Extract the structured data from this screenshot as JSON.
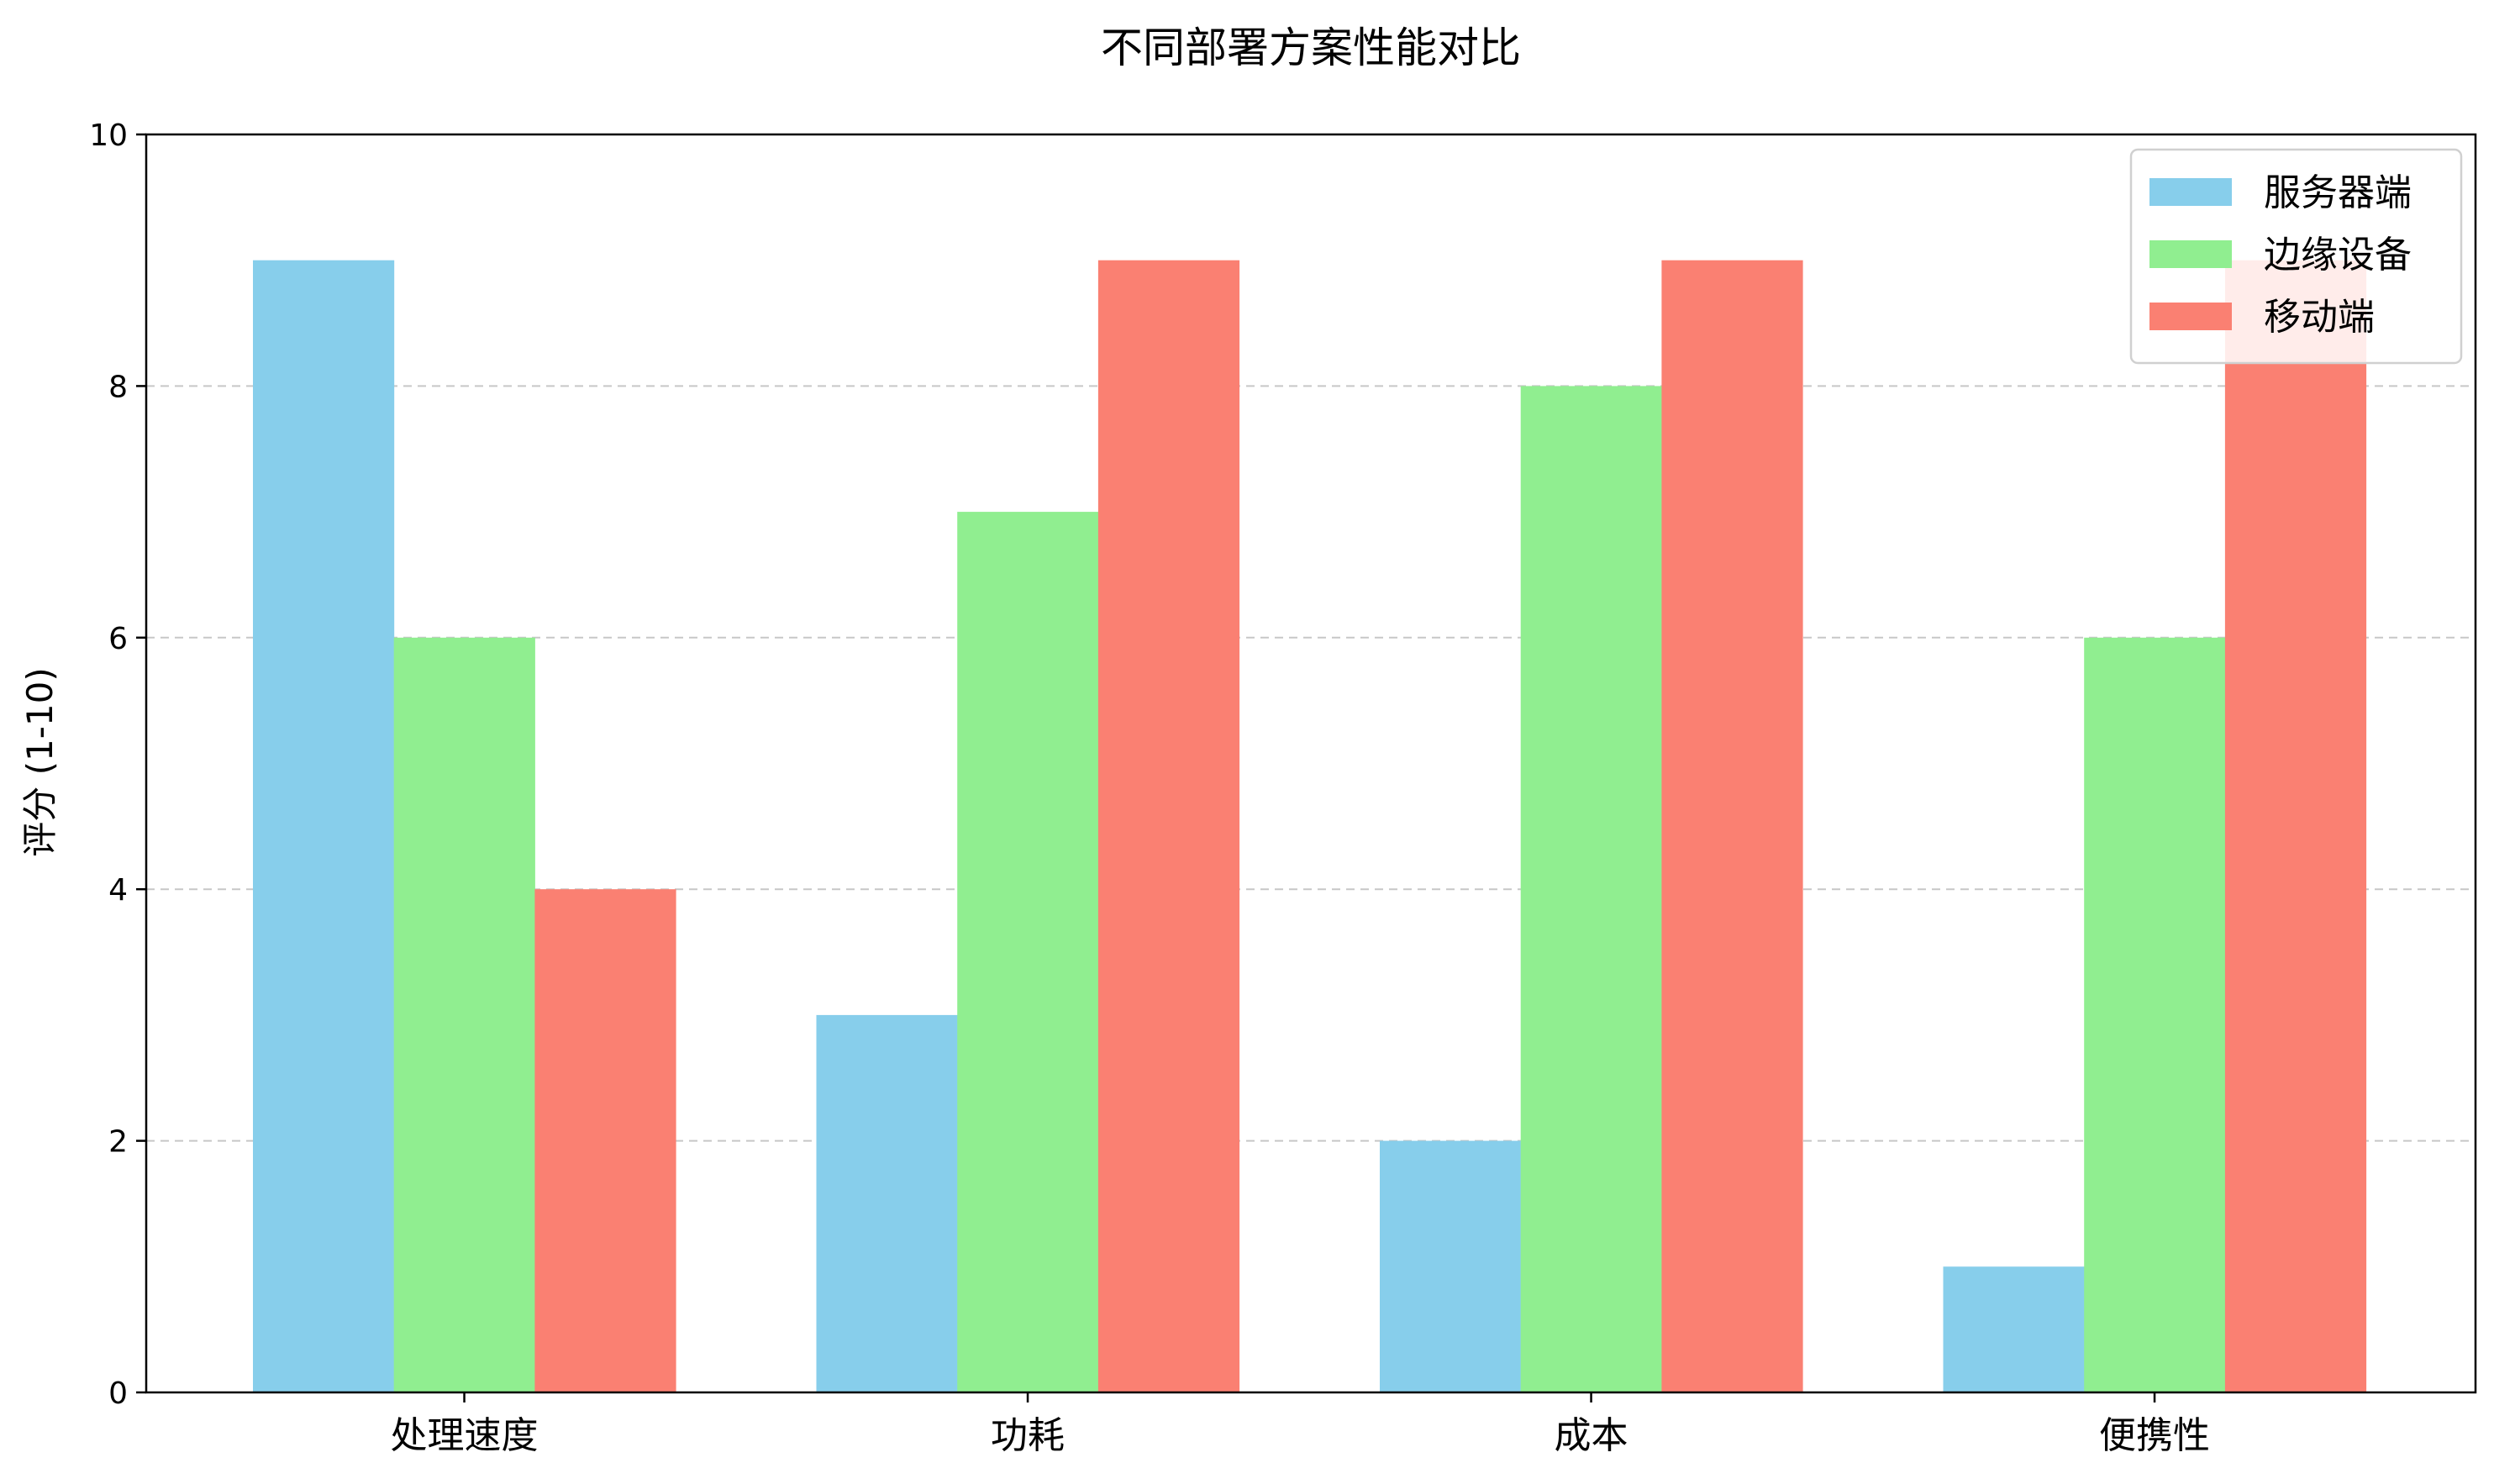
{
  "chart_data": {
    "type": "bar",
    "title": "不同部署方案性能对比",
    "xlabel": "",
    "ylabel": "评分 (1-10)",
    "categories": [
      "处理速度",
      "功耗",
      "成本",
      "便携性"
    ],
    "series": [
      {
        "name": "服务器端",
        "values": [
          9,
          3,
          2,
          1
        ],
        "color": "#87CEEB"
      },
      {
        "name": "边缘设备",
        "values": [
          6,
          7,
          8,
          6
        ],
        "color": "#90EE90"
      },
      {
        "name": "移动端",
        "values": [
          4,
          9,
          9,
          9
        ],
        "color": "#FA8072"
      }
    ],
    "ylim": [
      0,
      10
    ],
    "yticks": [
      0,
      2,
      4,
      6,
      8,
      10
    ],
    "grid": "y-dashed",
    "legend_position": "top-right"
  }
}
